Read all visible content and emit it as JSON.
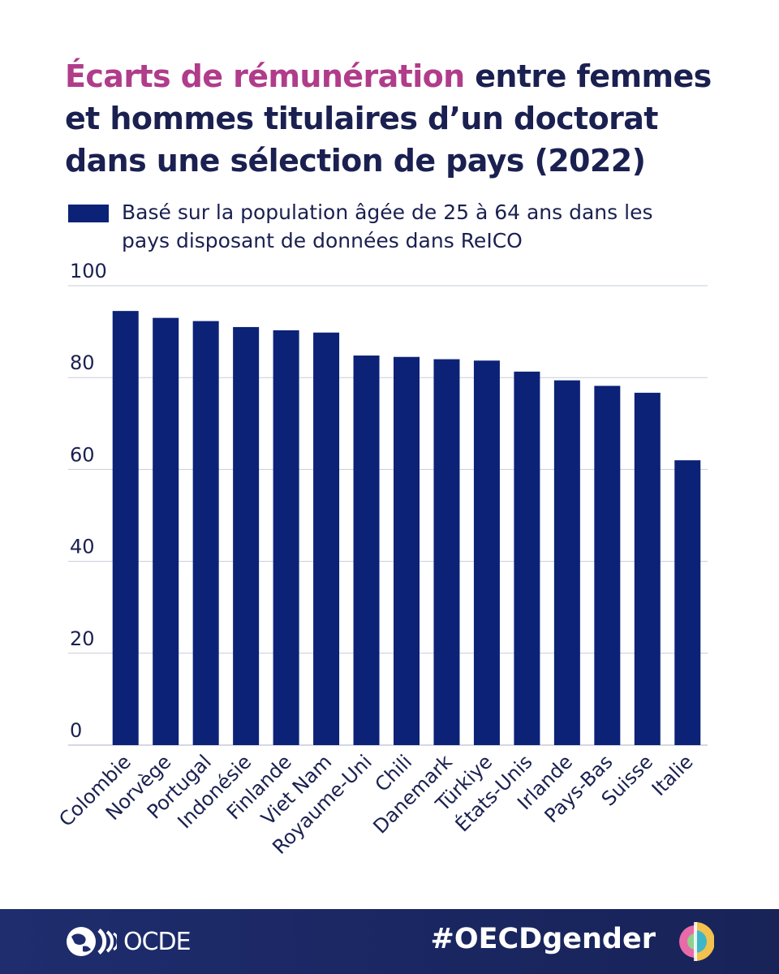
{
  "title": {
    "highlight": "Écarts de rémunération",
    "rest": " entre femmes et hommes titulaires d’un doctorat dans une sélection de pays (2022)"
  },
  "legend": {
    "label": "Basé sur la population âgée de 25 à 64 ans dans les pays disposant de données dans ReICO",
    "color": "#0b2277"
  },
  "chart_data": {
    "type": "bar",
    "categories": [
      "Colombie",
      "Norvège",
      "Portugal",
      "Indonésie",
      "Finlande",
      "Viet Nam",
      "Royaume-Uni",
      "Chili",
      "Danemark",
      "Türkiye",
      "États-Unis",
      "Irlande",
      "Pays-Bas",
      "Suisse",
      "Italie"
    ],
    "series": [
      {
        "name": "Basé sur la population âgée de 25 à 64 ans dans les pays disposant de données dans ReICO",
        "values": [
          94.5,
          93,
          92.3,
          91,
          90.3,
          89.8,
          84.8,
          84.5,
          84,
          83.7,
          81.3,
          79.4,
          78.2,
          76.7,
          62
        ],
        "color": "#0b2277"
      }
    ],
    "ylim": [
      0,
      100
    ],
    "yticks": [
      0,
      20,
      40,
      60,
      80,
      100
    ],
    "grid": true,
    "xlabel": "",
    "ylabel": "",
    "legend_position": "top"
  },
  "footer": {
    "logo_text": "OCDE",
    "hashtag": "#OECDgender"
  },
  "colors": {
    "title": "#1a2050",
    "highlight": "#b03c8a",
    "bar": "#0b2277",
    "grid": "#c9ccd8",
    "footer_bg": "#1f2d6e"
  }
}
